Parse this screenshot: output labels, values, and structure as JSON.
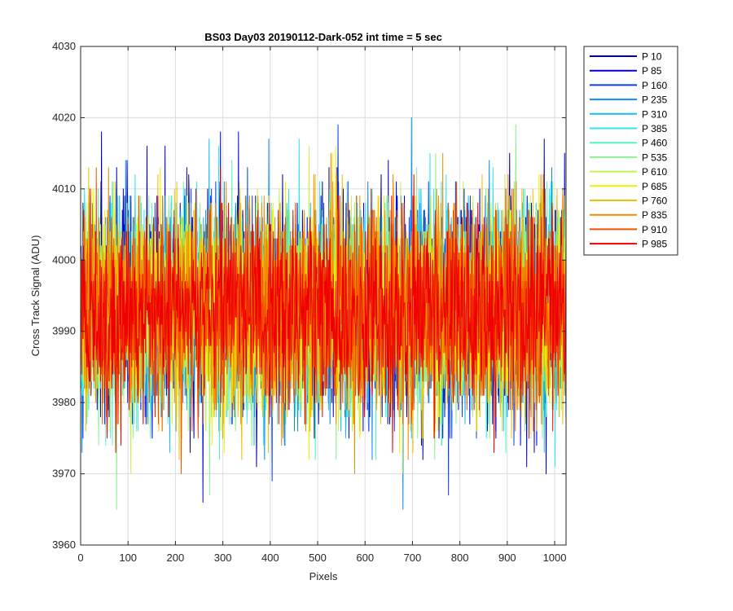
{
  "chart_data": {
    "type": "line",
    "title": "BS03 Day03 20190112-Dark-052 int time = 5 sec",
    "xlabel": "Pixels",
    "ylabel": "Cross Track Signal (ADU)",
    "xlim": [
      0,
      1024
    ],
    "ylim": [
      3960,
      4030
    ],
    "xticks": [
      0,
      100,
      200,
      300,
      400,
      500,
      600,
      700,
      800,
      900,
      1000
    ],
    "yticks": [
      3960,
      3970,
      3980,
      3990,
      4000,
      4010,
      4020,
      4030
    ],
    "xtick_labels": [
      "0",
      "100",
      "200",
      "300",
      "400",
      "500",
      "600",
      "700",
      "800",
      "900",
      "1000"
    ],
    "ytick_labels": [
      "3960",
      "3970",
      "3980",
      "3990",
      "4000",
      "4010",
      "4020",
      "4030"
    ],
    "grid": true,
    "legend_position": "outside-top-right",
    "series_baseline": 3993,
    "series_noise_sd": 7,
    "series": [
      {
        "name": "P 10",
        "color": "#0000A0"
      },
      {
        "name": "P 85",
        "color": "#0000DF"
      },
      {
        "name": "P 160",
        "color": "#0A3CF0"
      },
      {
        "name": "P 235",
        "color": "#0A8CF0"
      },
      {
        "name": "P 310",
        "color": "#14BEF0"
      },
      {
        "name": "P 385",
        "color": "#2DE6F0"
      },
      {
        "name": "P 460",
        "color": "#55F0C8"
      },
      {
        "name": "P 535",
        "color": "#8CF08C"
      },
      {
        "name": "P 610",
        "color": "#C8F050"
      },
      {
        "name": "P 685",
        "color": "#F0F000"
      },
      {
        "name": "P 760",
        "color": "#F0C000"
      },
      {
        "name": "P 835",
        "color": "#F08C00"
      },
      {
        "name": "P 910",
        "color": "#F05000"
      },
      {
        "name": "P 985",
        "color": "#F00000"
      }
    ]
  }
}
